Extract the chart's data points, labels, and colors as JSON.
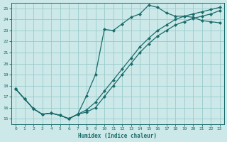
{
  "xlabel": "Humidex (Indice chaleur)",
  "bg_color": "#cce8e8",
  "grid_color": "#99cccc",
  "line_color": "#1a6b6b",
  "xlim": [
    -0.5,
    23.5
  ],
  "ylim": [
    14.5,
    25.5
  ],
  "xticks": [
    0,
    1,
    2,
    3,
    4,
    5,
    6,
    7,
    8,
    9,
    10,
    11,
    12,
    13,
    14,
    15,
    16,
    17,
    18,
    19,
    20,
    21,
    22,
    23
  ],
  "yticks": [
    15,
    16,
    17,
    18,
    19,
    20,
    21,
    22,
    23,
    24,
    25
  ],
  "line1_x": [
    0,
    1,
    2,
    3,
    4,
    5,
    6,
    7,
    8,
    9,
    10,
    11,
    12,
    13,
    14,
    15,
    16,
    17,
    18,
    19,
    20,
    21,
    22,
    23
  ],
  "line1_y": [
    17.7,
    16.8,
    15.9,
    15.4,
    15.5,
    15.3,
    15.0,
    15.4,
    17.1,
    19.0,
    23.1,
    23.0,
    23.6,
    24.2,
    24.5,
    25.3,
    25.1,
    24.6,
    24.3,
    24.3,
    24.2,
    23.9,
    23.8,
    23.7
  ],
  "line2_x": [
    0,
    1,
    2,
    3,
    4,
    5,
    6,
    7,
    8,
    9,
    10,
    11,
    12,
    13,
    14,
    15,
    16,
    17,
    18,
    19,
    20,
    21,
    22,
    23
  ],
  "line2_y": [
    17.7,
    16.8,
    15.9,
    15.4,
    15.5,
    15.3,
    15.0,
    15.4,
    15.8,
    16.5,
    17.5,
    18.5,
    19.5,
    20.5,
    21.5,
    22.3,
    23.0,
    23.5,
    24.0,
    24.3,
    24.5,
    24.7,
    24.9,
    25.1
  ],
  "line3_x": [
    0,
    1,
    2,
    3,
    4,
    5,
    6,
    7,
    8,
    9,
    10,
    11,
    12,
    13,
    14,
    15,
    16,
    17,
    18,
    19,
    20,
    21,
    22,
    23
  ],
  "line3_y": [
    17.7,
    16.8,
    15.9,
    15.4,
    15.5,
    15.3,
    15.0,
    15.4,
    15.6,
    16.0,
    17.0,
    18.0,
    19.0,
    20.0,
    21.0,
    21.8,
    22.5,
    23.0,
    23.5,
    23.8,
    24.1,
    24.3,
    24.5,
    24.8
  ],
  "markersize": 2.5,
  "linewidth": 0.9
}
